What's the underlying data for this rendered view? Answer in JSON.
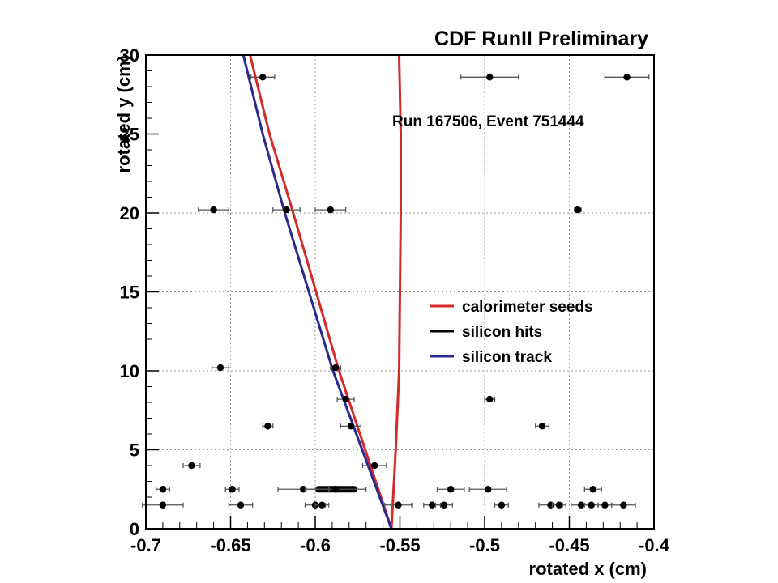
{
  "chart_data": {
    "type": "scatter",
    "title": "CDF RunII Preliminary",
    "annotation": "Run 167506, Event 751444",
    "xlabel": "rotated x (cm)",
    "ylabel": "rotated y (cm)",
    "xlim": [
      -0.7,
      -0.4
    ],
    "ylim": [
      0,
      30
    ],
    "x_ticks": [
      -0.7,
      -0.65,
      -0.6,
      -0.55,
      -0.5,
      -0.45,
      -0.4
    ],
    "x_tick_labels": [
      "-0.7",
      "-0.65",
      "-0.6",
      "-0.55",
      "-0.5",
      "-0.45",
      "-0.4"
    ],
    "y_ticks": [
      0,
      5,
      10,
      15,
      20,
      25,
      30
    ],
    "y_tick_labels": [
      "0",
      "5",
      "10",
      "15",
      "20",
      "25",
      "30"
    ],
    "grid": true,
    "legend_position": "center-right",
    "legend": [
      {
        "label": "calorimeter seeds",
        "color": "#d42a2a"
      },
      {
        "label": "silicon hits",
        "color": "#000000"
      },
      {
        "label": "silicon track",
        "color": "#2a2a8c"
      }
    ],
    "series": [
      {
        "name": "silicon hits",
        "kind": "points",
        "color": "#000000",
        "points": [
          {
            "x": -0.631,
            "y": 28.6,
            "xerr": 0.007
          },
          {
            "x": -0.497,
            "y": 28.6,
            "xerr": 0.017
          },
          {
            "x": -0.416,
            "y": 28.6,
            "xerr": 0.013
          },
          {
            "x": -0.66,
            "y": 20.2,
            "xerr": 0.009
          },
          {
            "x": -0.617,
            "y": 20.2,
            "xerr": 0.008
          },
          {
            "x": -0.591,
            "y": 20.2,
            "xerr": 0.009
          },
          {
            "x": -0.445,
            "y": 20.2,
            "xerr": 0.002
          },
          {
            "x": -0.656,
            "y": 10.2,
            "xerr": 0.005
          },
          {
            "x": -0.588,
            "y": 10.2,
            "xerr": 0.003
          },
          {
            "x": -0.582,
            "y": 8.2,
            "xerr": 0.005
          },
          {
            "x": -0.497,
            "y": 8.2,
            "xerr": 0.003
          },
          {
            "x": -0.628,
            "y": 6.5,
            "xerr": 0.003
          },
          {
            "x": -0.579,
            "y": 6.5,
            "xerr": 0.006
          },
          {
            "x": -0.466,
            "y": 6.5,
            "xerr": 0.004
          },
          {
            "x": -0.673,
            "y": 4.0,
            "xerr": 0.005
          },
          {
            "x": -0.565,
            "y": 4.0,
            "xerr": 0.007
          },
          {
            "x": -0.69,
            "y": 2.5,
            "xerr": 0.004
          },
          {
            "x": -0.649,
            "y": 2.5,
            "xerr": 0.004
          },
          {
            "x": -0.607,
            "y": 2.5,
            "xerr": 0.015
          },
          {
            "x": -0.588,
            "y": 2.5,
            "xerr": 0.018
          },
          {
            "x": -0.52,
            "y": 2.5,
            "xerr": 0.008
          },
          {
            "x": -0.498,
            "y": 2.5,
            "xerr": 0.011
          },
          {
            "x": -0.436,
            "y": 2.5,
            "xerr": 0.005
          },
          {
            "x": -0.69,
            "y": 1.5,
            "xerr": 0.012
          },
          {
            "x": -0.644,
            "y": 1.5,
            "xerr": 0.007
          },
          {
            "x": -0.6,
            "y": 1.5,
            "xerr": 0.006
          },
          {
            "x": -0.596,
            "y": 1.5,
            "xerr": 0.004
          },
          {
            "x": -0.551,
            "y": 1.5,
            "xerr": 0.008
          },
          {
            "x": -0.531,
            "y": 1.5,
            "xerr": 0.005
          },
          {
            "x": -0.524,
            "y": 1.5,
            "xerr": 0.005
          },
          {
            "x": -0.49,
            "y": 1.5,
            "xerr": 0.004
          },
          {
            "x": -0.461,
            "y": 1.5,
            "xerr": 0.007
          },
          {
            "x": -0.456,
            "y": 1.5,
            "xerr": 0.004
          },
          {
            "x": -0.443,
            "y": 1.5,
            "xerr": 0.006
          },
          {
            "x": -0.437,
            "y": 1.5,
            "xerr": 0.004
          },
          {
            "x": -0.429,
            "y": 1.5,
            "xerr": 0.004
          },
          {
            "x": -0.418,
            "y": 1.5,
            "xerr": 0.007
          }
        ]
      },
      {
        "name": "calorimeter seeds",
        "kind": "line",
        "color": "#d42a2a",
        "points": [
          {
            "x": -0.555,
            "y": 0
          },
          {
            "x": -0.586,
            "y": 10
          },
          {
            "x": -0.613,
            "y": 20
          },
          {
            "x": -0.627,
            "y": 25
          },
          {
            "x": -0.6385,
            "y": 30
          }
        ]
      },
      {
        "name": "calorimeter seeds",
        "kind": "line",
        "color": "#d42a2a",
        "points": [
          {
            "x": -0.555,
            "y": 0
          },
          {
            "x": -0.5525,
            "y": 5
          },
          {
            "x": -0.5505,
            "y": 10
          },
          {
            "x": -0.5495,
            "y": 20
          },
          {
            "x": -0.5495,
            "y": 25
          },
          {
            "x": -0.5505,
            "y": 30
          }
        ]
      },
      {
        "name": "silicon track",
        "kind": "line",
        "color": "#2a2a8c",
        "points": [
          {
            "x": -0.555,
            "y": 0
          },
          {
            "x": -0.5895,
            "y": 10
          },
          {
            "x": -0.618,
            "y": 20
          },
          {
            "x": -0.631,
            "y": 25
          },
          {
            "x": -0.6425,
            "y": 30
          }
        ]
      }
    ]
  }
}
